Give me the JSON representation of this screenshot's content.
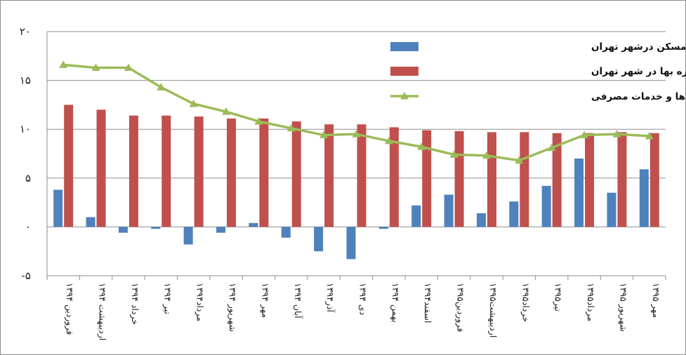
{
  "chart_data": {
    "type": "bar",
    "categories": [
      "فروردین ۱۳۹۴",
      "اردیبهشت ۱۳۹۴",
      "خرداد ۱۳۹۴",
      "تیر ۱۳۹۴",
      "مرداد۱۳۹۴",
      "شهریور ۱۳۹۴",
      "مهر ۱۳۹۴",
      "آبان ۱۳۹۴",
      "آذر۱۳۹۴",
      "دی ۱۳۹۴",
      "بهمن ۱۳۹۴",
      "اسفند۱۳۹۴",
      "فروردین۱۳۹۵",
      "اردیبهشت۱۳۹۵",
      "خرداد۱۳۹۵",
      "تیر۱۳۹۵",
      "مرداد۱۳۹۵",
      "شهریور ۱۳۹۵",
      "مهر ۱۳۹۵"
    ],
    "series": [
      {
        "name": "نرخ رشد قیمت مسکن درشهر تهران",
        "kind": "bar",
        "color": "#4f81bd",
        "values": [
          3.8,
          1.0,
          -0.6,
          -0.2,
          -1.8,
          -0.6,
          0.4,
          -1.1,
          -2.5,
          -3.3,
          -0.2,
          2.2,
          3.3,
          1.4,
          2.6,
          4.2,
          7.0,
          3.5,
          5.9
        ]
      },
      {
        "name": "نرخ رشد اجاره بها در شهر تهران",
        "kind": "bar",
        "color": "#c0504d",
        "values": [
          12.5,
          12.0,
          11.4,
          11.4,
          11.3,
          11.1,
          11.1,
          10.8,
          10.5,
          10.5,
          10.2,
          9.9,
          9.8,
          9.7,
          9.7,
          9.6,
          9.6,
          9.7,
          9.6
        ]
      },
      {
        "name": "نرخ رشدشاخص بهای کالاها و خدمات مصرفی",
        "kind": "line",
        "color": "#9bbb59",
        "values": [
          16.6,
          16.3,
          16.3,
          14.3,
          12.6,
          11.8,
          10.8,
          10.1,
          9.4,
          9.5,
          8.8,
          8.2,
          7.4,
          7.3,
          6.8,
          8.1,
          9.4,
          9.5,
          9.3
        ]
      }
    ],
    "yticks": [
      "۲۰",
      "۱۵",
      "۱۰",
      "۵",
      "۰",
      "-۵"
    ],
    "ylim": [
      -5,
      20
    ],
    "ytick_values": [
      20,
      15,
      10,
      5,
      0,
      -5
    ],
    "grid": true,
    "legend_position": "top-right"
  }
}
